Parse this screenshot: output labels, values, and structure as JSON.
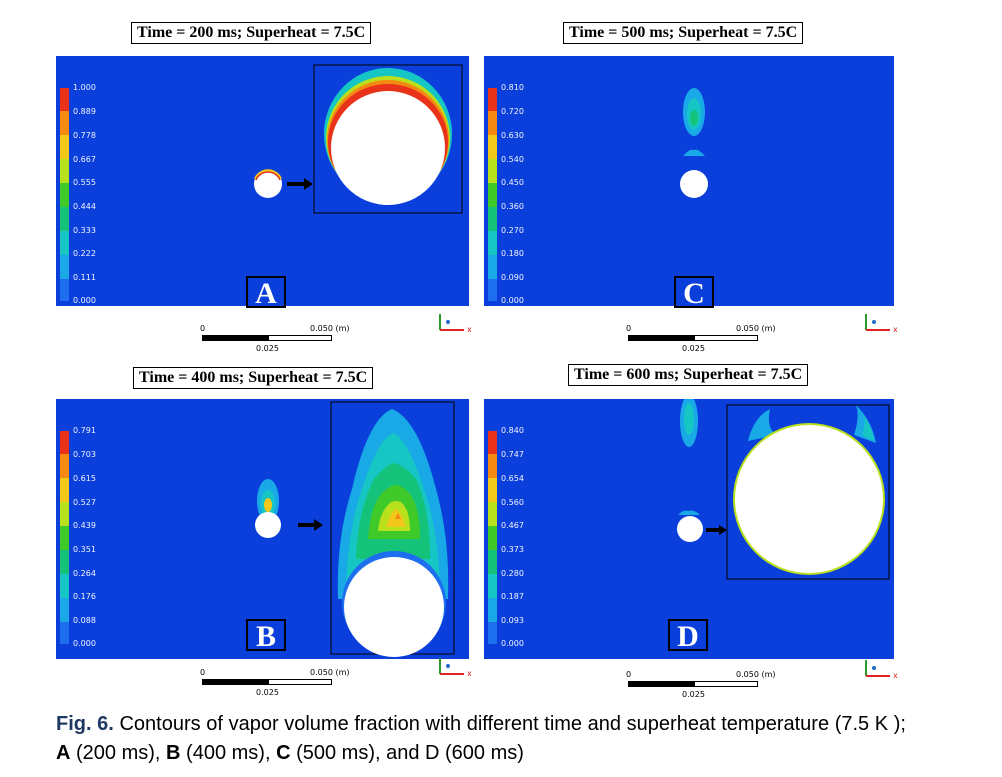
{
  "figure": {
    "panels": [
      {
        "id": "A",
        "title": "Time = 200 ms; Superheat = 7.5C",
        "letter": "A",
        "legend": [
          "1.000",
          "0.889",
          "0.778",
          "0.667",
          "0.555",
          "0.444",
          "0.333",
          "0.222",
          "0.111",
          "0.000"
        ],
        "scale": {
          "zero": "0",
          "end": "0.050 (m)",
          "mid": "0.025"
        },
        "axis_label": "x"
      },
      {
        "id": "C",
        "title": "Time = 500 ms; Superheat = 7.5C",
        "letter": "C",
        "legend": [
          "0.810",
          "0.720",
          "0.630",
          "0.540",
          "0.450",
          "0.360",
          "0.270",
          "0.180",
          "0.090",
          "0.000"
        ],
        "scale": {
          "zero": "0",
          "end": "0.050 (m)",
          "mid": "0.025"
        },
        "axis_label": "x"
      },
      {
        "id": "B",
        "title": "Time = 400 ms; Superheat = 7.5C",
        "letter": "B",
        "legend": [
          "0.791",
          "0.703",
          "0.615",
          "0.527",
          "0.439",
          "0.351",
          "0.264",
          "0.176",
          "0.088",
          "0.000"
        ],
        "scale": {
          "zero": "0",
          "end": "0.050 (m)",
          "mid": "0.025"
        },
        "axis_label": "x"
      },
      {
        "id": "D",
        "title": "Time = 600 ms; Superheat = 7.5C",
        "letter": "D",
        "legend": [
          "0.840",
          "0.747",
          "0.654",
          "0.560",
          "0.467",
          "0.373",
          "0.280",
          "0.187",
          "0.093",
          "0.000"
        ],
        "scale": {
          "zero": "0",
          "end": "0.050 (m)",
          "mid": "0.025"
        },
        "axis_label": "x"
      }
    ],
    "legend_colors": [
      "#e8321a",
      "#f58a12",
      "#f2c81a",
      "#b8e01c",
      "#3fca2a",
      "#15c27a",
      "#16c6c4",
      "#19a9e6",
      "#1e6ff0",
      "#0b3fdc"
    ],
    "caption": {
      "label": "Fig. 6.",
      "text_1": " Contours of vapor volume fraction with different time and superheat temperature (7.5 K ); ",
      "a": "A",
      "a_text": " (200 ms), ",
      "b": "B",
      "b_text": " (400 ms), ",
      "c": "C",
      "c_text": " (500 ms), and D (600 ms)"
    }
  }
}
